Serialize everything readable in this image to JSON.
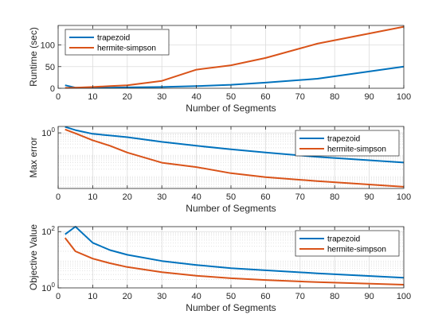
{
  "colors": {
    "trapezoid": "#0072BD",
    "hermite-simpson": "#D95319"
  },
  "chart_data": [
    {
      "type": "line",
      "xlabel": "Number of Segments",
      "ylabel": "Runtime (sec)",
      "xlim": [
        0,
        100
      ],
      "ylim": [
        0,
        145
      ],
      "yscale": "linear",
      "xticks": [
        0,
        10,
        20,
        30,
        40,
        50,
        60,
        70,
        80,
        90,
        100
      ],
      "yticks": [
        0,
        50,
        100
      ],
      "ytick_labels": [
        "0",
        "50",
        "100"
      ],
      "grid": "major",
      "legend_position": "top-left",
      "series": [
        {
          "name": "trapezoid",
          "x": [
            2,
            5,
            10,
            15,
            20,
            30,
            40,
            50,
            60,
            75,
            100
          ],
          "y": [
            7,
            1.5,
            1.2,
            1.5,
            2,
            3,
            5,
            8,
            13,
            22,
            50
          ]
        },
        {
          "name": "hermite-simpson",
          "x": [
            2,
            5,
            10,
            15,
            20,
            30,
            40,
            50,
            60,
            75,
            100
          ],
          "y": [
            1,
            1.5,
            3,
            5,
            7,
            17,
            43,
            53,
            70,
            103,
            142
          ]
        }
      ]
    },
    {
      "type": "line",
      "xlabel": "Number of Segments",
      "ylabel": "Max error",
      "xlim": [
        0,
        100
      ],
      "ylim": [
        0.0025,
        2
      ],
      "yscale": "log",
      "xticks": [
        0,
        10,
        20,
        30,
        40,
        50,
        60,
        70,
        80,
        90,
        100
      ],
      "yticks": [
        1
      ],
      "ytick_labels": [
        "10^0"
      ],
      "grid": "major-and-minor",
      "legend_position": "top-right",
      "series": [
        {
          "name": "trapezoid",
          "x": [
            2,
            5,
            10,
            15,
            20,
            30,
            40,
            50,
            60,
            75,
            100
          ],
          "y": [
            1.9,
            1.35,
            0.9,
            0.75,
            0.63,
            0.38,
            0.25,
            0.17,
            0.12,
            0.075,
            0.041
          ]
        },
        {
          "name": "hermite-simpson",
          "x": [
            2,
            5,
            10,
            15,
            20,
            30,
            40,
            50,
            60,
            75,
            100
          ],
          "y": [
            1.45,
            0.95,
            0.45,
            0.25,
            0.12,
            0.04,
            0.025,
            0.013,
            0.0085,
            0.0055,
            0.003
          ]
        }
      ]
    },
    {
      "type": "line",
      "xlabel": "Number of Segments",
      "ylabel": "Objective Value",
      "xlim": [
        0,
        100
      ],
      "ylim": [
        1,
        150
      ],
      "yscale": "log",
      "xticks": [
        0,
        10,
        20,
        30,
        40,
        50,
        60,
        70,
        80,
        90,
        100
      ],
      "yticks": [
        1,
        100
      ],
      "ytick_labels": [
        "10^0",
        "10^2"
      ],
      "grid": "major-and-minor",
      "legend_position": "top-right",
      "series": [
        {
          "name": "trapezoid",
          "x": [
            2,
            5,
            10,
            15,
            20,
            30,
            40,
            50,
            60,
            75,
            100
          ],
          "y": [
            80,
            150,
            40,
            22,
            15,
            9,
            6.5,
            5,
            4.2,
            3.3,
            2.3
          ]
        },
        {
          "name": "hermite-simpson",
          "x": [
            2,
            5,
            10,
            15,
            20,
            30,
            40,
            50,
            60,
            75,
            100
          ],
          "y": [
            60,
            20,
            11,
            7.5,
            5.5,
            3.6,
            2.7,
            2.2,
            1.9,
            1.6,
            1.3
          ]
        }
      ]
    }
  ]
}
